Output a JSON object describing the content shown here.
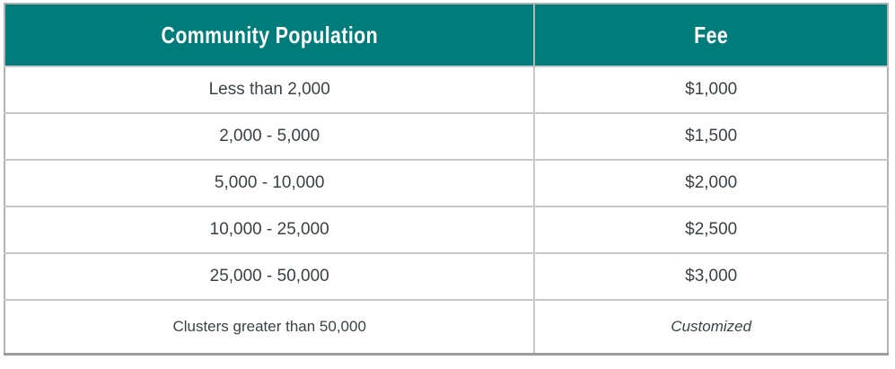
{
  "theme": {
    "header_bg": "#007c7b",
    "header_text": "#ffffff",
    "body_text": "#3c4147",
    "divider": "#c9c9c9",
    "outer_border": "#b2b2b2"
  },
  "table": {
    "columns": [
      {
        "label": "Community Population"
      },
      {
        "label": "Fee"
      }
    ],
    "rows": [
      {
        "population": "Less than 2,000",
        "fee": "$1,000",
        "fee_style": "normal",
        "compact": false
      },
      {
        "population": "2,000 - 5,000",
        "fee": "$1,500",
        "fee_style": "normal",
        "compact": false
      },
      {
        "population": "5,000 - 10,000",
        "fee": "$2,000",
        "fee_style": "normal",
        "compact": false
      },
      {
        "population": "10,000 - 25,000",
        "fee": "$2,500",
        "fee_style": "normal",
        "compact": false
      },
      {
        "population": "25,000 - 50,000",
        "fee": "$3,000",
        "fee_style": "normal",
        "compact": false
      },
      {
        "population": "Clusters greater than 50,000",
        "fee": "Customized",
        "fee_style": "italic",
        "compact": true
      }
    ]
  }
}
